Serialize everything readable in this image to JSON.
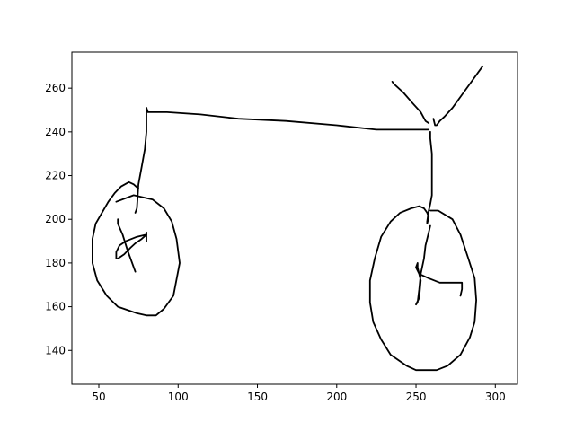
{
  "chart_data": {
    "type": "line",
    "title": "",
    "xlabel": "",
    "ylabel": "",
    "xlim": [
      33,
      314
    ],
    "ylim": [
      124.5,
      276.5
    ],
    "xticks": [
      50,
      100,
      150,
      200,
      250,
      300
    ],
    "yticks": [
      140,
      160,
      180,
      200,
      220,
      240,
      260
    ],
    "grid": false,
    "legend": "none",
    "line_color": "#000000",
    "series": [
      {
        "points": [
          [
            80,
            251
          ],
          [
            81,
            249
          ],
          [
            93,
            249
          ],
          [
            114,
            248
          ],
          [
            138,
            246
          ],
          [
            168,
            245
          ],
          [
            200,
            243
          ],
          [
            225,
            241
          ],
          [
            258,
            241
          ]
        ]
      },
      {
        "points": [
          [
            80,
            251
          ],
          [
            80,
            240
          ],
          [
            79,
            232
          ],
          [
            77,
            224
          ],
          [
            75,
            216
          ],
          [
            74,
            205
          ],
          [
            73,
            203
          ]
        ]
      },
      {
        "points": [
          [
            75,
            214
          ],
          [
            72,
            216
          ],
          [
            69,
            217
          ],
          [
            64,
            215
          ],
          [
            60,
            212
          ],
          [
            56,
            208
          ],
          [
            52,
            203
          ],
          [
            48,
            198
          ],
          [
            46,
            191
          ],
          [
            46,
            180
          ],
          [
            49,
            172
          ],
          [
            55,
            165
          ],
          [
            62,
            160
          ],
          [
            74,
            157
          ],
          [
            80,
            156
          ],
          [
            86,
            156
          ],
          [
            91,
            159
          ],
          [
            97,
            165
          ],
          [
            101,
            180
          ],
          [
            99,
            191
          ],
          [
            96,
            199
          ],
          [
            91,
            205
          ],
          [
            84,
            209
          ],
          [
            72,
            211
          ],
          [
            61,
            208
          ]
        ]
      },
      {
        "points": [
          [
            62,
            200
          ],
          [
            62,
            198
          ],
          [
            65,
            193
          ],
          [
            68,
            186
          ],
          [
            71,
            180
          ],
          [
            73,
            176
          ]
        ]
      },
      {
        "points": [
          [
            80,
            194
          ],
          [
            80,
            190
          ]
        ]
      },
      {
        "points": [
          [
            80,
            193
          ],
          [
            74,
            192
          ],
          [
            67,
            190
          ],
          [
            63,
            188
          ],
          [
            61,
            185
          ],
          [
            61,
            182
          ],
          [
            62,
            182
          ],
          [
            66,
            184
          ],
          [
            70,
            187
          ],
          [
            73,
            189
          ],
          [
            77,
            191
          ],
          [
            80,
            193
          ]
        ]
      },
      {
        "points": [
          [
            235,
            263
          ],
          [
            236,
            262
          ],
          [
            242,
            258
          ],
          [
            248,
            253
          ],
          [
            253,
            249
          ],
          [
            256,
            245
          ],
          [
            258,
            244
          ]
        ]
      },
      {
        "points": [
          [
            292,
            270
          ],
          [
            290,
            268
          ],
          [
            285,
            263
          ],
          [
            279,
            257
          ],
          [
            273,
            251
          ],
          [
            268,
            247
          ],
          [
            265,
            245
          ],
          [
            263,
            243
          ],
          [
            262,
            243
          ],
          [
            261,
            246
          ]
        ]
      },
      {
        "points": [
          [
            259,
            240
          ],
          [
            259,
            237
          ],
          [
            260,
            230
          ],
          [
            260,
            225
          ],
          [
            260,
            216
          ],
          [
            260,
            211
          ],
          [
            259,
            207
          ],
          [
            258,
            204
          ],
          [
            257,
            199
          ],
          [
            257,
            198
          ]
        ]
      },
      {
        "points": [
          [
            257,
            198
          ],
          [
            258,
            201
          ],
          [
            257,
            203
          ],
          [
            255,
            205
          ],
          [
            252,
            206
          ],
          [
            247,
            205
          ],
          [
            240,
            203
          ],
          [
            234,
            199
          ],
          [
            228,
            192
          ],
          [
            224,
            182
          ],
          [
            221,
            172
          ],
          [
            221,
            162
          ],
          [
            223,
            153
          ],
          [
            228,
            145
          ],
          [
            234,
            138
          ],
          [
            244,
            133
          ],
          [
            250,
            131
          ],
          [
            257,
            131
          ],
          [
            263,
            131
          ],
          [
            270,
            133
          ],
          [
            278,
            138
          ],
          [
            284,
            146
          ],
          [
            287,
            153
          ],
          [
            288,
            163
          ],
          [
            287,
            173
          ],
          [
            283,
            182
          ],
          [
            278,
            193
          ],
          [
            273,
            200
          ],
          [
            264,
            204
          ],
          [
            259,
            204
          ]
        ]
      },
      {
        "points": [
          [
            259,
            197
          ],
          [
            258,
            194
          ],
          [
            256,
            188
          ],
          [
            255,
            182
          ],
          [
            253,
            175
          ],
          [
            252,
            168
          ],
          [
            251,
            162
          ],
          [
            250,
            161
          ],
          [
            252,
            164
          ],
          [
            253,
            172
          ],
          [
            251,
            178
          ],
          [
            251,
            180
          ],
          [
            250,
            178
          ],
          [
            252,
            175
          ],
          [
            258,
            173
          ],
          [
            265,
            171
          ],
          [
            271,
            171
          ],
          [
            279,
            171
          ],
          [
            279,
            168
          ],
          [
            278,
            165
          ]
        ]
      }
    ]
  }
}
